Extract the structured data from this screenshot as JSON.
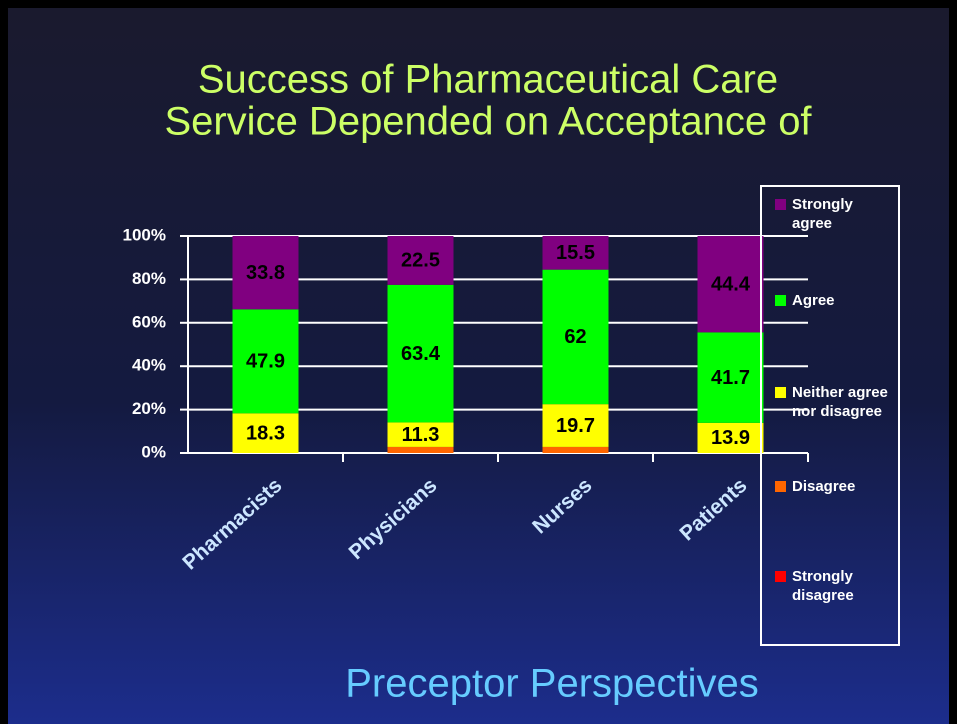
{
  "chart_data": {
    "type": "stacked_bar",
    "title": [
      "Success of Pharmaceutical Care",
      "Service Depended on Acceptance of"
    ],
    "subtitle": "Preceptor Perspectives",
    "categories": [
      "Pharmacists",
      "Physicians",
      "Nurses",
      "Patients"
    ],
    "series": [
      {
        "name": "Strongly disagree",
        "color": "#ff0000",
        "values": [
          0,
          0,
          0,
          0
        ]
      },
      {
        "name": "Disagree",
        "color": "#ff6600",
        "values": [
          0,
          2.8,
          2.8,
          0
        ]
      },
      {
        "name": "Neither agree nor disagree",
        "color": "#ffff00",
        "values": [
          18.3,
          11.3,
          19.7,
          13.9
        ]
      },
      {
        "name": "Agree",
        "color": "#00ff00",
        "values": [
          47.9,
          63.4,
          62,
          41.7
        ]
      },
      {
        "name": "Strongly agree",
        "color": "#800080",
        "values": [
          33.8,
          22.5,
          15.5,
          44.4
        ]
      }
    ],
    "ylim": [
      0,
      100
    ],
    "yticks": [
      {
        "value": 0,
        "label": "0%"
      },
      {
        "value": 20,
        "label": "20%"
      },
      {
        "value": 40,
        "label": "40%"
      },
      {
        "value": 60,
        "label": "60%"
      },
      {
        "value": 80,
        "label": "80%"
      },
      {
        "value": 100,
        "label": "100%"
      }
    ],
    "grid": true,
    "legend": "right"
  }
}
